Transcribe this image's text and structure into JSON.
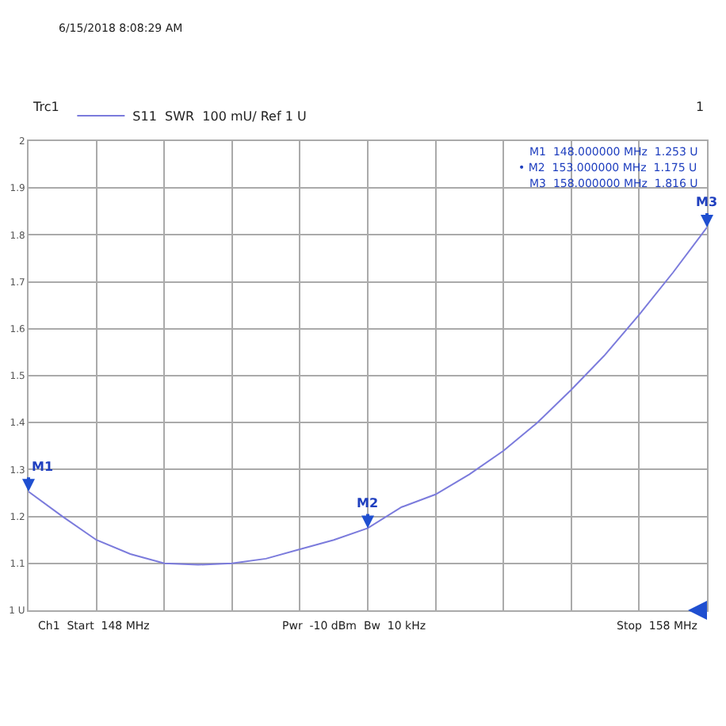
{
  "chart_data": {
    "type": "line",
    "categories": [
      null,
      null,
      null,
      null,
      null,
      null,
      null,
      null,
      null,
      null,
      null,
      null,
      null,
      null,
      null,
      null,
      null,
      null,
      null,
      null,
      null
    ],
    "series": [
      {
        "name": "S11  SWR  100 mU/ Ref 1 U",
        "color": "#7b7bdc",
        "values": [
          1.253,
          1.2,
          1.15,
          1.12,
          1.1,
          1.097,
          1.1,
          1.11,
          1.13,
          1.15,
          1.175,
          1.22,
          1.247,
          1.29,
          1.34,
          1.4,
          1.47,
          1.545,
          1.63,
          1.72,
          1.816
        ]
      }
    ],
    "ylim": [
      1,
      2
    ],
    "yticks": [
      {
        "value": 1,
        "label": "1 U"
      },
      1.1,
      1.2,
      1.3,
      1.4,
      1.5,
      1.6,
      1.7,
      1.8,
      1.9,
      2
    ],
    "tick_labels": "y",
    "grid": true,
    "legend": "top left",
    "marker": "none",
    "line_style": "solid",
    "annotations": [
      "6/15/2018 8:08:29 AM",
      "Trc1",
      "1",
      "M1  148.000000 MHz  1.253 U",
      "• M2  153.000000 MHz  1.175 U",
      "M3  158.000000 MHz  1.816 U",
      "Ch1  Start  148 MHz",
      "Pwr  -10 dBm  Bw  10 kHz",
      "Stop  158 MHz",
      {
        "text": "M1",
        "y": 1.253
      },
      {
        "text": "M2",
        "y": 1.175
      },
      {
        "text": "M3",
        "y": 1.816
      }
    ]
  }
}
